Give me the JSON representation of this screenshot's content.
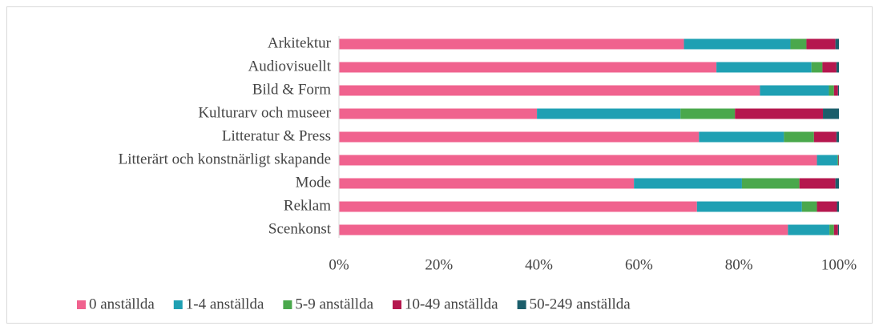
{
  "chart_data": {
    "type": "stacked_barh",
    "categories": [
      "Arkitektur",
      "Audiovisuellt",
      "Bild & Form",
      "Kulturarv och museer",
      "Litteratur & Press",
      "Litterärt och konstnärligt skapande",
      "Mode",
      "Reklam",
      "Scenkonst"
    ],
    "series": [
      {
        "name": "0 anställda",
        "color": "#f0628e",
        "values": [
          69,
          75.5,
          84.2,
          39.6,
          72,
          95.6,
          59,
          71.6,
          89.8
        ]
      },
      {
        "name": "1-4 anställda",
        "color": "#1fa0b3",
        "values": [
          21.3,
          19,
          13.8,
          28.7,
          17,
          4.1,
          21.6,
          21,
          8.3
        ]
      },
      {
        "name": "5-9 anställda",
        "color": "#4aa84c",
        "values": [
          3.2,
          2.2,
          1,
          10.9,
          6,
          0.2,
          11.5,
          3,
          0.9
        ]
      },
      {
        "name": "10-49 anställda",
        "color": "#b5174e",
        "values": [
          5.8,
          2.8,
          0.8,
          17.6,
          4.5,
          0.1,
          7.2,
          4,
          0.8
        ]
      },
      {
        "name": "50-249 anställda",
        "color": "#1b5e6b",
        "values": [
          0.7,
          0.5,
          0.2,
          3.2,
          0.5,
          0,
          0.7,
          0.4,
          0.2
        ]
      }
    ],
    "xlim": [
      0,
      100
    ],
    "xticks": [
      {
        "value": 0,
        "label": "0%"
      },
      {
        "value": 20,
        "label": "20%"
      },
      {
        "value": 40,
        "label": "40%"
      },
      {
        "value": 60,
        "label": "60%"
      },
      {
        "value": 80,
        "label": "80%"
      },
      {
        "value": 100,
        "label": "100%"
      }
    ],
    "legend": "bottom"
  }
}
